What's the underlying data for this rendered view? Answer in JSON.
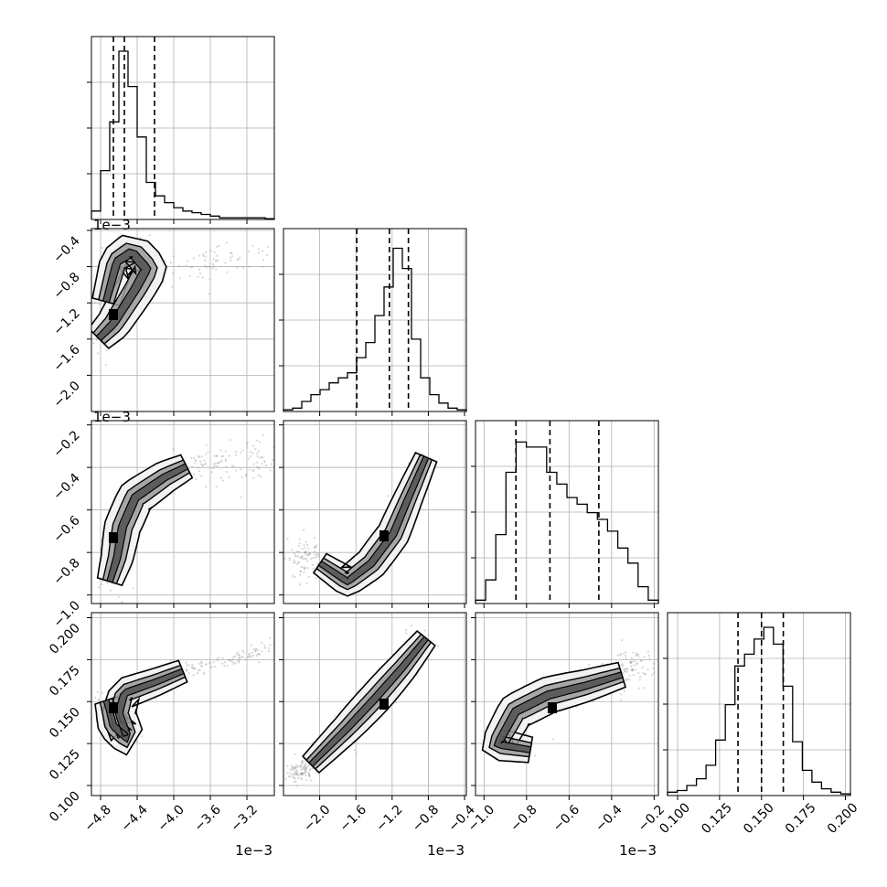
{
  "chart_data": {
    "type": "corner",
    "grid": true,
    "parameters": [
      {
        "range": [
          -0.0049,
          -0.0029
        ],
        "ticks": [
          -0.0048,
          -0.0044,
          -0.004,
          -0.0036,
          -0.0032
        ],
        "tick_labels": [
          "−4.8",
          "−4.4",
          "−4.0",
          "−3.6",
          "−3.2"
        ],
        "offset_label": "1e−3",
        "quantiles": [
          -0.00466,
          -0.00454,
          -0.00421
        ],
        "histogram": [
          0.05,
          0.29,
          0.58,
          1.0,
          0.79,
          0.49,
          0.22,
          0.14,
          0.1,
          0.07,
          0.05,
          0.04,
          0.03,
          0.02,
          0.01,
          0.01,
          0.01,
          0.01,
          0.01,
          0.005
        ]
      },
      {
        "range": [
          -0.0024,
          -0.00038
        ],
        "ticks": [
          -0.002,
          -0.0016,
          -0.0012,
          -0.0008,
          -0.0004
        ],
        "tick_labels": [
          "−2.0",
          "−1.6",
          "−1.2",
          "−0.8",
          "−0.4"
        ],
        "offset_label": "1e−3",
        "quantiles": [
          -0.00159,
          -0.00123,
          -0.00102
        ],
        "histogram": [
          0.01,
          0.02,
          0.06,
          0.1,
          0.13,
          0.17,
          0.2,
          0.23,
          0.32,
          0.41,
          0.57,
          0.74,
          0.97,
          0.85,
          0.43,
          0.2,
          0.1,
          0.05,
          0.02,
          0.01
        ]
      },
      {
        "range": [
          -0.00104,
          -0.00018
        ],
        "ticks": [
          -0.001,
          -0.0008,
          -0.0006,
          -0.0004,
          -0.0002
        ],
        "tick_labels": [
          "−1.0",
          "−0.8",
          "−0.6",
          "−0.4",
          "−0.2"
        ],
        "offset_label": "1e−3",
        "quantiles": [
          -0.00085,
          -0.00069,
          -0.00046
        ],
        "histogram": [
          0.02,
          0.14,
          0.41,
          0.78,
          0.96,
          0.93,
          0.93,
          0.78,
          0.71,
          0.63,
          0.59,
          0.54,
          0.5,
          0.43,
          0.33,
          0.24,
          0.1,
          0.02
        ]
      },
      {
        "range": [
          0.094,
          0.203
        ],
        "ticks": [
          0.1,
          0.125,
          0.15,
          0.175,
          0.2
        ],
        "tick_labels": [
          "0.100",
          "0.125",
          "0.150",
          "0.175",
          "0.200"
        ],
        "offset_label": "",
        "quantiles": [
          0.136,
          0.15,
          0.163
        ],
        "histogram": [
          0.02,
          0.03,
          0.06,
          0.1,
          0.18,
          0.33,
          0.54,
          0.77,
          0.84,
          0.93,
          1.0,
          0.9,
          0.65,
          0.32,
          0.15,
          0.08,
          0.04,
          0.02,
          0.01
        ]
      }
    ]
  }
}
